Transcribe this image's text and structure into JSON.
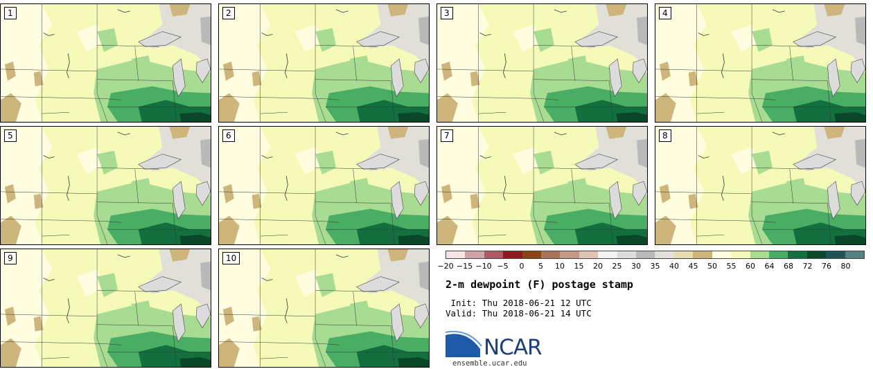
{
  "panels": [
    {
      "label": "1"
    },
    {
      "label": "2"
    },
    {
      "label": "3"
    },
    {
      "label": "4"
    },
    {
      "label": "5"
    },
    {
      "label": "6"
    },
    {
      "label": "7"
    },
    {
      "label": "8"
    },
    {
      "label": "9"
    },
    {
      "label": "10"
    }
  ],
  "colorbar": {
    "colors": [
      "#f5e4e6",
      "#cfa3a7",
      "#ac5b62",
      "#8b1a22",
      "#8a4415",
      "#a8755b",
      "#c49a86",
      "#dfc4b6",
      "#f3f1f1",
      "#dcdcdc",
      "#b9b9b9",
      "#e1e0d8",
      "#e6dcb2",
      "#cdb57c",
      "#fffde0",
      "#f6fab8",
      "#a8dc92",
      "#49ad64",
      "#136f3e",
      "#0a4728",
      "#1f5458",
      "#54807f"
    ],
    "ticks": [
      "−20",
      "−15",
      "−10",
      "−5",
      "0",
      "5",
      "10",
      "15",
      "20",
      "25",
      "30",
      "35",
      "40",
      "45",
      "50",
      "55",
      "60",
      "64",
      "68",
      "72",
      "76",
      "80"
    ]
  },
  "title": "2-m dewpoint (F) postage stamp",
  "init": " Init: Thu 2018-06-21 12 UTC",
  "valid": "Valid: Thu 2018-06-21 14 UTC",
  "logo": {
    "text": "NCAR",
    "url": "ensemble.ucar.edu"
  }
}
